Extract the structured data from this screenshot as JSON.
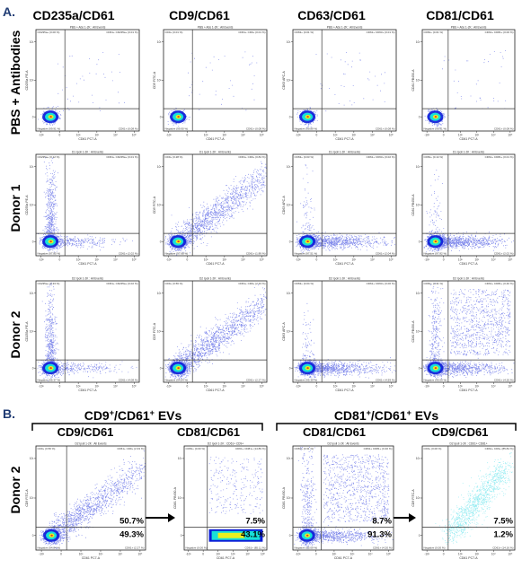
{
  "panel_a_label": "A.",
  "panel_b_label": "B.",
  "columns_a": [
    "CD235a/CD61",
    "CD9/CD61",
    "CD63/CD61",
    "CD81/CD61"
  ],
  "rows_a": [
    "PBS + Antibodies",
    "Donor 1",
    "Donor 2"
  ],
  "row_b": "Donor 2",
  "groups_b": [
    {
      "title": "CD9",
      "title_sup": "+",
      "title_mid": "/CD61",
      "title_sup2": "+",
      "title_end": " EVs"
    },
    {
      "title": "CD81",
      "title_sup": "+",
      "title_mid": "/CD61",
      "title_sup2": "+",
      "title_end": " EVs"
    }
  ],
  "columns_b": [
    "CD9/CD61",
    "CD81/CD61",
    "CD81/CD61",
    "CD9/CD61"
  ],
  "colors": {
    "density_low": "#0a1cd8",
    "density_mid": "#18e0d8",
    "density_high": "#e8f020",
    "cyan_dots": "#7fe8ef",
    "axis": "#222222"
  },
  "chart_data": [
    {
      "type": "scatter",
      "id": "a-pbs-cd235a",
      "header": "PBS + Abs 1-2K : All Events",
      "xlabel": "CD61 PC7-A",
      "ylabel": "CD235a PE-A",
      "quadrants": {
        "ul": "CD235a+ (0.00 %)",
        "ur": "CD61+ CD235a+ (0.01 %)",
        "ll": "Negative (99.91 %)",
        "lr": "CD61+ (0.08 %)"
      },
      "pattern": "cluster"
    },
    {
      "type": "scatter",
      "id": "a-pbs-cd9",
      "header": "PBS + Abs 1-2K : All Events",
      "xlabel": "CD61 PC7-A",
      "ylabel": "CD9 FITC-A",
      "quadrants": {
        "ul": "CD9+ (0.01 %)",
        "ur": "CD61+ CD9+ (0.01 %)",
        "ll": "Negative (99.90 %)",
        "lr": "CD61+ (0.08 %)"
      },
      "pattern": "cluster"
    },
    {
      "type": "scatter",
      "id": "a-pbs-cd63",
      "header": "PBS + Abs 1-2K : All Events",
      "xlabel": "CD61 PC7-A",
      "ylabel": "CD63 APC-A",
      "quadrants": {
        "ul": "CD63+ (0.01 %)",
        "ur": "CD61+ CD63+ (0.01 %)",
        "ll": "Negative (99.89 %)",
        "lr": "CD61+ (0.08 %)"
      },
      "pattern": "cluster"
    },
    {
      "type": "scatter",
      "id": "a-pbs-cd81",
      "header": "PBS + Abs 1-2K : All Events",
      "xlabel": "CD61 PC7-A",
      "ylabel": "CD81 PB450-A",
      "quadrants": {
        "ul": "CD81+ (0.01 %)",
        "ur": "CD61+ CD81+ (0.00 %)",
        "ll": "Negative (99.91 %)",
        "lr": "CD61+ (0.08 %)"
      },
      "pattern": "cluster"
    },
    {
      "type": "scatter",
      "id": "a-d1-cd235a",
      "header": "D1 Ipoli 1-2K : All Events",
      "xlabel": "CD61 PC7-A",
      "ylabel": "CD235a PE-A",
      "quadrants": {
        "ul": "CD235a+ (0.12 %)",
        "ur": "CD61+ CD235a+ (0.01 %)",
        "ll": "Negative (97.85 %)",
        "lr": "CD61+ (2.02 %)"
      },
      "pattern": "vertical"
    },
    {
      "type": "scatter",
      "id": "a-d1-cd9",
      "header": "D1 Ipoli 1-2K : All Events",
      "xlabel": "CD61 PC7-A",
      "ylabel": "CD9 FITC-A",
      "quadrants": {
        "ul": "CD9+ (0.28 %)",
        "ur": "CD61+ CD9+ (0.84 %)",
        "ll": "Negative (97.68 %)",
        "lr": "CD61+ (1.89 %)"
      },
      "pattern": "diagonal"
    },
    {
      "type": "scatter",
      "id": "a-d1-cd63",
      "header": "D1 Ipoli 1-2K : All Events",
      "xlabel": "CD61 PC7-A",
      "ylabel": "CD63 APC-A",
      "quadrants": {
        "ul": "CD63+ (0.03 %)",
        "ur": "CD61+ CD63+ (0.02 %)",
        "ll": "Negative (97.51 %)",
        "lr": "CD61+ (2.04 %)"
      },
      "pattern": "horizontal"
    },
    {
      "type": "scatter",
      "id": "a-d1-cd81",
      "header": "D1 Ipoli 1-2K : All Events",
      "xlabel": "CD61 PC7-A",
      "ylabel": "CD81 PB450-A",
      "quadrants": {
        "ul": "CD81+ (0.14 %)",
        "ur": "CD61+ CD81+ (0.01 %)",
        "ll": "Negative (97.82 %)",
        "lr": "CD61+ (2.02 %)"
      },
      "pattern": "horizontal"
    },
    {
      "type": "scatter",
      "id": "a-d2-cd235a",
      "header": "D2 Ipoli 1-2K : All Events",
      "xlabel": "CD61 PC7-A",
      "ylabel": "CD235a PE-A",
      "quadrants": {
        "ul": "CD235a+ (0.33 %)",
        "ur": "CD61+ CD235a+ (0.02 %)",
        "ll": "Negative (95.37 %)",
        "lr": "CD61+ (4.08 %)"
      },
      "pattern": "vertical"
    },
    {
      "type": "scatter",
      "id": "a-d2-cd9",
      "header": "D2 Ipoli 1-2K : All Events",
      "xlabel": "CD61 PC7-A",
      "ylabel": "CD9 FITC-A",
      "quadrants": {
        "ul": "CD9+ (0.56 %)",
        "ur": "CD61+ CD9+ (2.33 %)",
        "ll": "Negative (94.84 %)",
        "lr": "CD61+ (2.27 %)"
      },
      "pattern": "diagonal"
    },
    {
      "type": "scatter",
      "id": "a-d2-cd63",
      "header": "D2 Ipoli 1-2K : All Events",
      "xlabel": "CD61 PC7-A",
      "ylabel": "CD63 APC-A",
      "quadrants": {
        "ul": "CD63+ (0.04 %)",
        "ur": "CD61+ CD63+ (0.00 %)",
        "ll": "Negative (95.39 %)",
        "lr": "CD61+ (4.59 %)"
      },
      "pattern": "horizontal"
    },
    {
      "type": "scatter",
      "id": "a-d2-cd81",
      "header": "D2 Ipoli 1-2K : All Events",
      "xlabel": "CD61 PC7-A",
      "ylabel": "CD81 PB450-A",
      "quadrants": {
        "ul": "CD81+ (0.31 %)",
        "ur": "CD61+ CD81+ (0.40 %)",
        "ll": "Negative (95.09 %)",
        "lr": "CD61+ (4.20 %)"
      },
      "pattern": "cloud"
    },
    {
      "type": "scatter",
      "id": "b-cd9",
      "header": "D2 Ipoli 1-2K : All Events",
      "xlabel": "CD61 PC7-A",
      "ylabel": "CD9 FITC-A",
      "quadrants": {
        "ul": "CD9+ (0.56 %)",
        "ur": "CD61+ CD9+ (2.33 %)",
        "ll": "Negative (94.84 %)",
        "lr": "CD61+ (2.27 %)"
      },
      "pattern": "diagonal",
      "big_labels": [
        "50.7%",
        "49.3%"
      ]
    },
    {
      "type": "scatter",
      "id": "b-cd81-gated",
      "header": "D2 Ipoli 1-2K : CD61+ CD9+",
      "xlabel": "CD61 PC7-A",
      "ylabel": "CD81 PB450-A",
      "quadrants": {
        "ul": "CD81+ (0.00 %)",
        "ur": "CD61+ CD81+ (14.89 %)",
        "ll": "Negative (0.00 %)",
        "lr": "CD61+ (85.11 %)"
      },
      "pattern": "gated_band",
      "big_labels": [
        "7.5%",
        "43.1%"
      ]
    },
    {
      "type": "scatter",
      "id": "b-cd81",
      "header": "D2 Ipoli 1-2K : All Events",
      "xlabel": "CD61 PC7-A",
      "ylabel": "CD81 PB450-A",
      "quadrants": {
        "ul": "CD81+ (0.31 %)",
        "ur": "CD61+ CD81+ (0.40 %)",
        "ll": "Negative (95.09 %)",
        "lr": "CD61+ (4.20 %)"
      },
      "pattern": "cloud",
      "big_labels": [
        "8.7%",
        "91.3%"
      ]
    },
    {
      "type": "scatter",
      "id": "b-cd9-gated",
      "header": "D2 Ipoli 1-2K : CD61+ CD81+",
      "xlabel": "CD61 PC7-A",
      "ylabel": "CD9 FITC-A",
      "quadrants": {
        "ul": "CD9+ (0.00 %)",
        "ur": "CD61+ CD9+ (85.84 %)",
        "ll": "Negative (0.00 %)",
        "lr": "CD61+ (14.16 %)"
      },
      "pattern": "cyan_diag",
      "big_labels": [
        "7.5%",
        "1.2%"
      ]
    }
  ],
  "tick_labels_x": [
    "-10²",
    "0",
    "10²",
    "10³",
    "10⁴",
    "10⁵"
  ],
  "tick_labels_y": [
    "10¹",
    "10²",
    "0"
  ]
}
